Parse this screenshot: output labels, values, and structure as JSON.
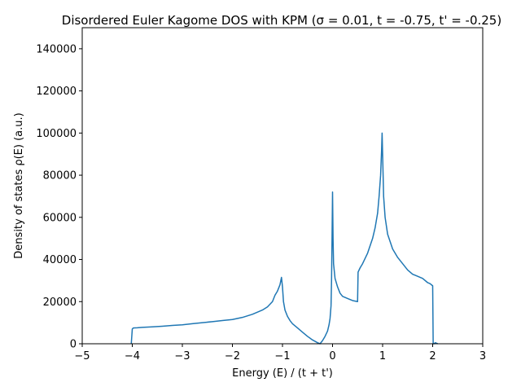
{
  "chart_data": {
    "type": "line",
    "title": "Disordered Euler Kagome DOS with KPM (σ = 0.01, t = -0.75, t' = -0.25)",
    "xlabel": "Energy (E) / (t + t')",
    "ylabel": "Density of states ρ(E) (a.u.)",
    "xlim": [
      -5,
      3
    ],
    "ylim": [
      0,
      150000
    ],
    "xticks": [
      -5,
      -4,
      -3,
      -2,
      -1,
      0,
      1,
      2,
      3
    ],
    "xtick_labels": [
      "−5",
      "−4",
      "−3",
      "−2",
      "−1",
      "0",
      "1",
      "2",
      "3"
    ],
    "yticks": [
      0,
      20000,
      40000,
      60000,
      80000,
      100000,
      120000,
      140000
    ],
    "ytick_labels": [
      "0",
      "20000",
      "40000",
      "60000",
      "80000",
      "100000",
      "120000",
      "140000"
    ],
    "grid": false,
    "series": [
      {
        "color": "#1f77b4",
        "x": [
          -4.02,
          -4.0,
          -3.98,
          -3.9,
          -3.8,
          -3.6,
          -3.4,
          -3.2,
          -3.0,
          -2.8,
          -2.6,
          -2.4,
          -2.2,
          -2.0,
          -1.8,
          -1.6,
          -1.4,
          -1.3,
          -1.2,
          -1.15,
          -1.1,
          -1.05,
          -1.02,
          -1.0,
          -0.98,
          -0.95,
          -0.9,
          -0.85,
          -0.8,
          -0.7,
          -0.6,
          -0.5,
          -0.4,
          -0.3,
          -0.25,
          -0.2,
          -0.15,
          -0.1,
          -0.07,
          -0.05,
          -0.03,
          -0.02,
          -0.01,
          0.0,
          0.01,
          0.02,
          0.05,
          0.1,
          0.15,
          0.2,
          0.3,
          0.4,
          0.5,
          0.51,
          0.55,
          0.6,
          0.7,
          0.8,
          0.85,
          0.9,
          0.93,
          0.96,
          0.98,
          0.99,
          1.0,
          1.01,
          1.02,
          1.05,
          1.1,
          1.2,
          1.3,
          1.4,
          1.5,
          1.6,
          1.7,
          1.8,
          1.9,
          1.95,
          2.0,
          2.01,
          2.03,
          2.05,
          2.1
        ],
        "y": [
          0,
          7000,
          7500,
          7600,
          7800,
          8000,
          8300,
          8700,
          9000,
          9500,
          10000,
          10500,
          11000,
          11500,
          12500,
          14000,
          16000,
          17500,
          20000,
          23000,
          25000,
          28000,
          31500,
          27000,
          20000,
          16000,
          13000,
          11000,
          9500,
          7500,
          5500,
          3500,
          1800,
          500,
          0,
          1500,
          3500,
          6000,
          9000,
          12000,
          18000,
          30000,
          50000,
          72000,
          50000,
          38000,
          31000,
          27000,
          24000,
          22500,
          21500,
          20500,
          20000,
          34000,
          36000,
          38000,
          43000,
          50000,
          55000,
          62000,
          70000,
          80000,
          92000,
          100000,
          90000,
          80000,
          70000,
          60000,
          52000,
          45000,
          41000,
          38000,
          35000,
          33000,
          32000,
          31000,
          29000,
          28500,
          27500,
          0,
          0,
          500,
          0
        ]
      }
    ]
  }
}
